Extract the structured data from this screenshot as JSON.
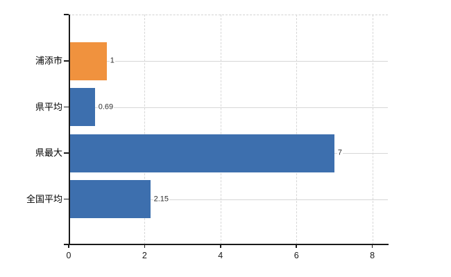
{
  "chart_data": {
    "type": "bar",
    "orientation": "horizontal",
    "title": "",
    "xlabel": "",
    "ylabel": "",
    "categories": [
      "浦添市",
      "県平均",
      "県最大",
      "全国平均"
    ],
    "values": [
      1,
      0.69,
      7,
      2.15
    ],
    "value_labels": [
      "1",
      "0.69",
      "7",
      "2.15"
    ],
    "series": [
      {
        "name": "value",
        "values": [
          1,
          0.69,
          7,
          2.15
        ],
        "colors": [
          "#f0923e",
          "#3d6fae",
          "#3d6fae",
          "#3d6fae"
        ]
      }
    ],
    "xlim": [
      0,
      8.41
    ],
    "x_ticks": [
      0,
      2,
      4,
      6,
      8
    ],
    "x_tick_labels": [
      "0",
      "2",
      "4",
      "6",
      "8"
    ],
    "grid": true,
    "legend": false
  },
  "colors": {
    "highlight_bar": "#f0923e",
    "default_bar": "#3d6fae",
    "gridline": "#d6d6d6",
    "axis": "#1a1a1a",
    "category_text": "#000000",
    "value_text": "#2e2e2e",
    "background": "#ffffff"
  }
}
